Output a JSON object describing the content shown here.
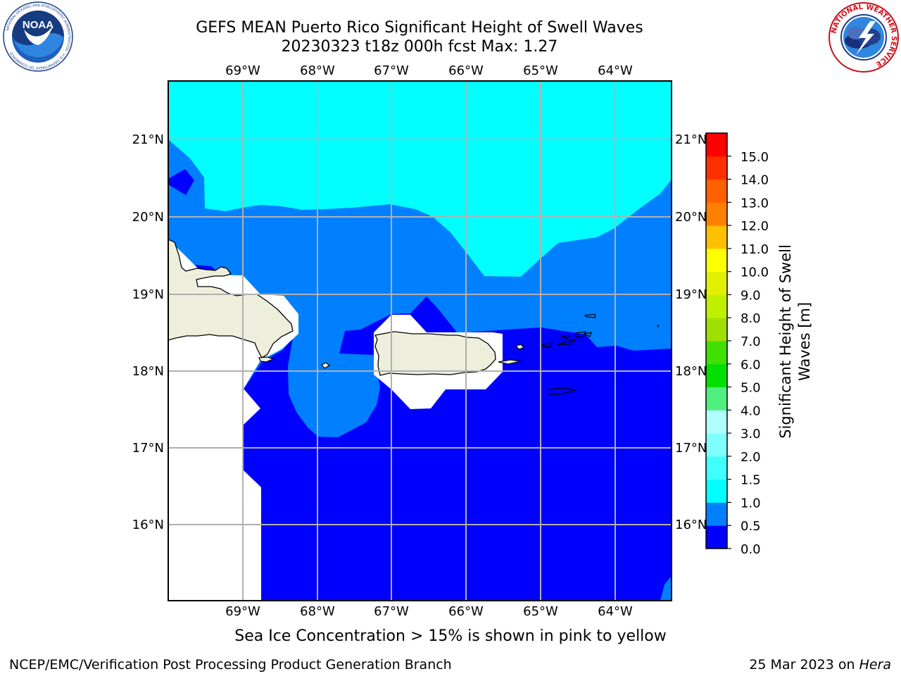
{
  "header": {
    "title_line1": "GEFS MEAN Puerto Rico Significant Height of Swell Waves",
    "title_line2": "20230323 t18z 000h fcst   Max: 1.27"
  },
  "logos": {
    "noaa_text": "NOAA",
    "noaa_ring_text": "NATIONAL OCEANIC AND ATMOSPHERIC ADMINISTRATION · U.S. DEPARTMENT OF COMMERCE",
    "nws_ring_text": "NATIONAL WEATHER SERVICE"
  },
  "map": {
    "lon_labels": [
      "69°W",
      "68°W",
      "67°W",
      "66°W",
      "65°W",
      "64°W"
    ],
    "lat_labels": [
      "21°N",
      "20°N",
      "19°N",
      "18°N",
      "17°N",
      "16°N"
    ],
    "colors": {
      "land": "#eeeedc",
      "no_data": "#ffffff",
      "grid": "#b0b0b0"
    }
  },
  "colorbar": {
    "label_line1": "Significant Height of Swell",
    "label_line2": "Waves [m]",
    "ticks": [
      "0.0",
      "0.5",
      "1.0",
      "1.5",
      "2.0",
      "3.0",
      "4.0",
      "5.0",
      "6.0",
      "7.0",
      "8.0",
      "9.0",
      "10.0",
      "11.0",
      "12.0",
      "13.0",
      "14.0",
      "15.0"
    ],
    "colors": [
      "#0000ff",
      "#0080ff",
      "#00ffff",
      "#40ffff",
      "#80ffff",
      "#b0ffff",
      "#50f080",
      "#00e000",
      "#40e000",
      "#a0e000",
      "#c0f000",
      "#e0f000",
      "#ffff00",
      "#ffc000",
      "#ff8000",
      "#ff6000",
      "#ff3000",
      "#ff0000"
    ]
  },
  "caption": "Sea Ice Concentration > 15% is shown in pink to yellow",
  "footer": {
    "left": "NCEP/EMC/Verification Post Processing Product Generation Branch",
    "right_date": "25 Mar 2023 on",
    "right_host": "Hera"
  }
}
